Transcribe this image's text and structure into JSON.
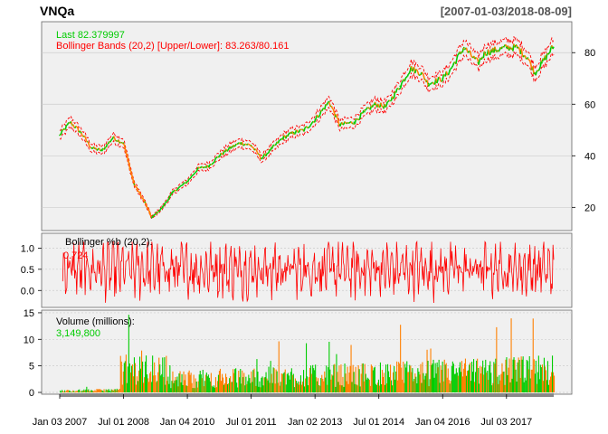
{
  "chart_data": {
    "type": "line",
    "title": "VNQa",
    "date_range": "[2007-01-03/2018-08-09]",
    "x_tick_labels": [
      "Jan 03 2007",
      "Jul 01 2008",
      "Jan 04 2010",
      "Jul 01 2011",
      "Jan 02 2013",
      "Jul 01 2014",
      "Jan 04 2016",
      "Jul 03 2017"
    ],
    "colors": {
      "price_up": "#00cc00",
      "price_down": "#ff8000",
      "bands": "#ff0000",
      "pctb": "#ff0000",
      "panel_bg": "#f0f0f0",
      "grid": "#cccccc"
    },
    "panels": [
      {
        "name": "price",
        "legend": [
          {
            "text": "Last 82.379997",
            "color": "#00cc00"
          },
          {
            "text": "Bollinger Bands (20,2) [Upper/Lower]: 83.263/80.161",
            "color": "#ff0000"
          }
        ],
        "yticks": [
          20,
          40,
          60,
          80
        ],
        "ylim": [
          11,
          92
        ],
        "series": [
          {
            "name": "Last",
            "x": [
              "2007-01",
              "2007-04",
              "2007-07",
              "2007-10",
              "2008-01",
              "2008-04",
              "2008-07",
              "2008-10",
              "2009-01",
              "2009-03",
              "2009-06",
              "2009-09",
              "2010-01",
              "2010-04",
              "2010-07",
              "2010-10",
              "2011-01",
              "2011-04",
              "2011-07",
              "2011-10",
              "2012-01",
              "2012-04",
              "2012-07",
              "2012-10",
              "2013-01",
              "2013-05",
              "2013-08",
              "2013-12",
              "2014-03",
              "2014-06",
              "2014-09",
              "2015-01",
              "2015-04",
              "2015-07",
              "2015-09",
              "2016-01",
              "2016-03",
              "2016-07",
              "2016-11",
              "2017-01",
              "2017-04",
              "2017-07",
              "2017-10",
              "2018-01",
              "2018-03",
              "2018-05",
              "2018-08"
            ],
            "values": [
              48,
              53,
              49,
              43,
              42,
              47,
              45,
              29,
              22,
              16,
              20,
              26,
              30,
              35,
              36,
              40,
              43,
              45,
              44,
              39,
              43,
              47,
              49,
              50,
              54,
              61,
              52,
              53,
              57,
              60,
              59,
              67,
              74,
              72,
              68,
              70,
              73,
              82,
              76,
              80,
              81,
              82,
              82,
              78,
              72,
              76,
              82
            ]
          }
        ]
      },
      {
        "name": "bollinger_pctb",
        "legend": [
          {
            "text": "Bollinger %b (20,2):",
            "color": "#000000"
          },
          {
            "text": "0.724",
            "color": "#ff0000"
          }
        ],
        "yticks": [
          0.0,
          0.5,
          1.0
        ],
        "ylim": [
          -0.4,
          1.35
        ],
        "last": 0.724
      },
      {
        "name": "volume",
        "legend": [
          {
            "text": "Volume (millions):",
            "color": "#000000"
          },
          {
            "text": "3,149,800",
            "color": "#00cc00"
          }
        ],
        "yticks": [
          0,
          5,
          10,
          15
        ],
        "ylim": [
          0,
          15.5
        ],
        "last": 3.1498
      }
    ]
  }
}
